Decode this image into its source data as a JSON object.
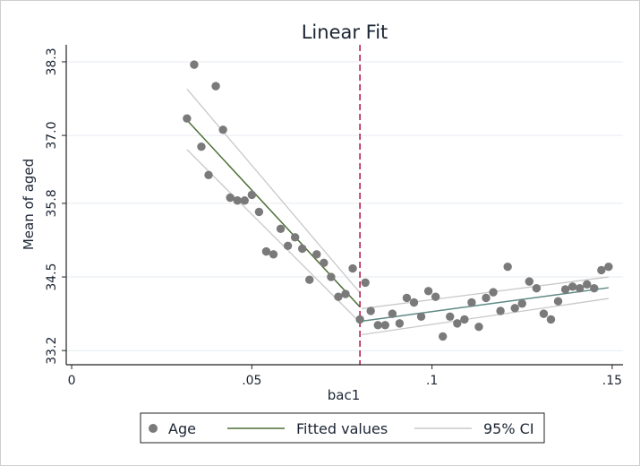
{
  "chart_data": {
    "type": "scatter",
    "title": "Linear Fit",
    "xlabel": "bac1",
    "ylabel": "Mean of aged",
    "xlim": [
      -0.0015,
      0.153
    ],
    "ylim": [
      32.95,
      38.6
    ],
    "xticks": [
      0,
      0.05,
      0.1,
      0.15
    ],
    "xtick_labels": [
      "0",
      ".05",
      ".1",
      ".15"
    ],
    "yticks": [
      33.2,
      34.5,
      35.8,
      37.0,
      38.3
    ],
    "ytick_labels": [
      "33.2",
      "34.5",
      "35.8",
      "37.0",
      "38.3"
    ],
    "grid": "horizontal",
    "cutoff": 0.08,
    "legend_position": "bottom",
    "legend": [
      "Age",
      "Fitted values",
      "95% CI"
    ],
    "colors": {
      "points": "#7a7a7a",
      "fit": "#4d6e35",
      "fit_right": "#5e8a86",
      "ci": "#c8c8c8",
      "cutoff": "#b51f4f",
      "grid": "#e6ebf0",
      "axis": "#222222"
    },
    "series": [
      {
        "name": "Age",
        "points": [
          [
            0.032,
            37.3
          ],
          [
            0.034,
            38.25
          ],
          [
            0.036,
            36.8
          ],
          [
            0.038,
            36.3
          ],
          [
            0.04,
            37.87
          ],
          [
            0.042,
            37.1
          ],
          [
            0.044,
            35.9
          ],
          [
            0.046,
            35.85
          ],
          [
            0.048,
            35.85
          ],
          [
            0.05,
            35.95
          ],
          [
            0.052,
            35.65
          ],
          [
            0.054,
            34.95
          ],
          [
            0.056,
            34.9
          ],
          [
            0.058,
            35.35
          ],
          [
            0.06,
            35.05
          ],
          [
            0.062,
            35.2
          ],
          [
            0.064,
            35.0
          ],
          [
            0.066,
            34.45
          ],
          [
            0.068,
            34.9
          ],
          [
            0.07,
            34.75
          ],
          [
            0.072,
            34.5
          ],
          [
            0.074,
            34.15
          ],
          [
            0.076,
            34.2
          ],
          [
            0.078,
            34.65
          ],
          [
            0.08,
            33.75
          ],
          [
            0.0815,
            34.4
          ],
          [
            0.083,
            33.9
          ],
          [
            0.085,
            33.65
          ],
          [
            0.087,
            33.65
          ],
          [
            0.089,
            33.85
          ],
          [
            0.091,
            33.68
          ],
          [
            0.093,
            34.13
          ],
          [
            0.095,
            34.05
          ],
          [
            0.097,
            33.8
          ],
          [
            0.099,
            34.25
          ],
          [
            0.101,
            34.15
          ],
          [
            0.103,
            33.45
          ],
          [
            0.105,
            33.8
          ],
          [
            0.107,
            33.68
          ],
          [
            0.109,
            33.75
          ],
          [
            0.111,
            34.05
          ],
          [
            0.113,
            33.62
          ],
          [
            0.115,
            34.13
          ],
          [
            0.117,
            34.23
          ],
          [
            0.119,
            33.9
          ],
          [
            0.121,
            34.68
          ],
          [
            0.123,
            33.95
          ],
          [
            0.125,
            34.03
          ],
          [
            0.127,
            34.42
          ],
          [
            0.129,
            34.3
          ],
          [
            0.131,
            33.85
          ],
          [
            0.133,
            33.75
          ],
          [
            0.135,
            34.07
          ],
          [
            0.137,
            34.28
          ],
          [
            0.139,
            34.33
          ],
          [
            0.141,
            34.3
          ],
          [
            0.143,
            34.37
          ],
          [
            0.145,
            34.3
          ],
          [
            0.147,
            34.62
          ],
          [
            0.149,
            34.68
          ]
        ]
      },
      {
        "name": "Fitted values",
        "segments": [
          [
            [
              0.032,
              37.27
            ],
            [
              0.08,
              33.97
            ]
          ],
          [
            [
              0.0805,
              33.72
            ],
            [
              0.149,
              34.31
            ]
          ]
        ]
      },
      {
        "name": "95% CI",
        "segments": [
          [
            [
              0.032,
              37.82
            ],
            [
              0.08,
              34.22
            ]
          ],
          [
            [
              0.032,
              36.75
            ],
            [
              0.08,
              33.7
            ]
          ],
          [
            [
              0.0805,
              33.94
            ],
            [
              0.149,
              34.5
            ]
          ],
          [
            [
              0.0805,
              33.48
            ],
            [
              0.149,
              34.12
            ]
          ]
        ]
      }
    ]
  }
}
